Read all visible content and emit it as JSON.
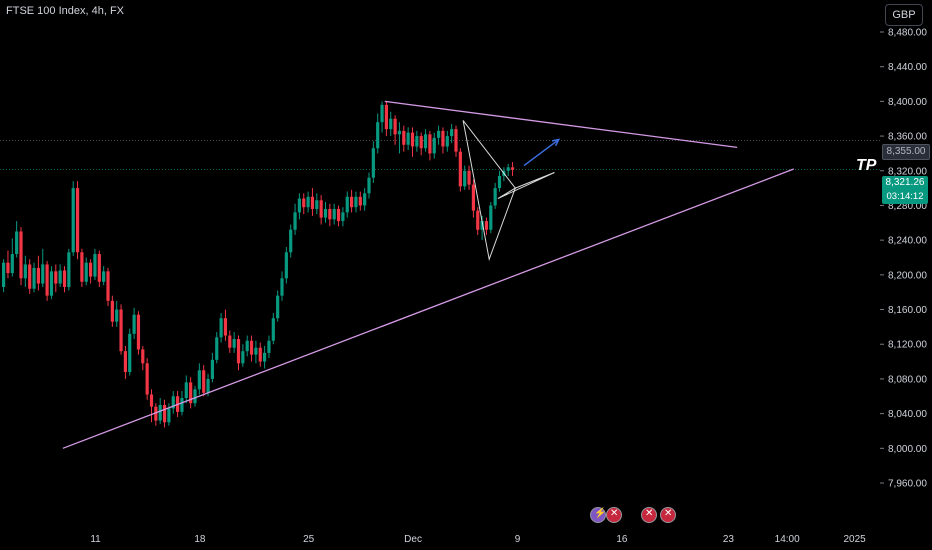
{
  "header": {
    "title": "FTSE 100 Index, 4h, FX"
  },
  "currency": "GBP",
  "annotation": {
    "tp": "TP"
  },
  "price_tags": {
    "target": "8,355.00",
    "last": "8,321.26",
    "countdown": "03:14:12"
  },
  "events": [
    "flash-icon",
    "uk-flag-icon",
    "uk-flag-icon",
    "uk-flag-icon"
  ],
  "colors": {
    "up": "#089981",
    "down": "#f23645",
    "trendline": "#d59ae6",
    "arrow": "#3b6fe0",
    "background": "#000000"
  },
  "chart_data": {
    "type": "candlestick",
    "y_ticks": [
      7960,
      8000,
      8040,
      8080,
      8120,
      8160,
      8200,
      8240,
      8280,
      8320,
      8360,
      8400,
      8440,
      8480
    ],
    "y_tick_labels": [
      "7,960.00",
      "8,000.00",
      "8,040.00",
      "8,080.00",
      "8,120.00",
      "8,160.00",
      "8,200.00",
      "8,240.00",
      "8,280.00",
      "8,320.00",
      "8,360.00",
      "8,400.00",
      "8,440.00",
      "8,480.00"
    ],
    "x_tick_labels": [
      {
        "label": "11",
        "bar": 21.5
      },
      {
        "label": "18",
        "bar": 45.5
      },
      {
        "label": "25",
        "bar": 70.5
      },
      {
        "label": "Dec",
        "bar": 94.5
      },
      {
        "label": "9",
        "bar": 118.5
      },
      {
        "label": "16",
        "bar": 142.5
      },
      {
        "label": "23",
        "bar": 167
      },
      {
        "label": "14:00",
        "bar": 180.5
      },
      {
        "label": "2025",
        "bar": 196
      }
    ],
    "reference_lines": [
      {
        "price": 8355.0,
        "style": "dotted"
      },
      {
        "price": 8321.26,
        "style": "dotted"
      }
    ],
    "candles": [
      [
        8186,
        8214,
        8180,
        8218
      ],
      [
        8214,
        8202,
        8196,
        8228
      ],
      [
        8202,
        8224,
        8198,
        8242
      ],
      [
        8224,
        8250,
        8220,
        8262
      ],
      [
        8250,
        8196,
        8188,
        8255
      ],
      [
        8196,
        8212,
        8186,
        8222
      ],
      [
        8212,
        8184,
        8178,
        8218
      ],
      [
        8184,
        8208,
        8180,
        8214
      ],
      [
        8208,
        8190,
        8182,
        8222
      ],
      [
        8190,
        8212,
        8186,
        8230
      ],
      [
        8212,
        8176,
        8170,
        8216
      ],
      [
        8176,
        8204,
        8172,
        8210
      ],
      [
        8204,
        8190,
        8180,
        8212
      ],
      [
        8190,
        8205,
        8186,
        8212
      ],
      [
        8205,
        8186,
        8180,
        8210
      ],
      [
        8186,
        8226,
        8182,
        8230
      ],
      [
        8226,
        8300,
        8222,
        8308
      ],
      [
        8300,
        8226,
        8218,
        8308
      ],
      [
        8226,
        8192,
        8186,
        8230
      ],
      [
        8192,
        8214,
        8188,
        8220
      ],
      [
        8214,
        8198,
        8190,
        8218
      ],
      [
        8198,
        8224,
        8194,
        8230
      ],
      [
        8224,
        8192,
        8186,
        8228
      ],
      [
        8192,
        8204,
        8188,
        8210
      ],
      [
        8204,
        8170,
        8164,
        8208
      ],
      [
        8170,
        8146,
        8140,
        8176
      ],
      [
        8146,
        8160,
        8140,
        8170
      ],
      [
        8160,
        8112,
        8108,
        8166
      ],
      [
        8112,
        8088,
        8080,
        8118
      ],
      [
        8088,
        8132,
        8084,
        8138
      ],
      [
        8132,
        8154,
        8126,
        8162
      ],
      [
        8154,
        8114,
        8108,
        8158
      ],
      [
        8114,
        8098,
        8090,
        8118
      ],
      [
        8098,
        8062,
        8056,
        8104
      ],
      [
        8062,
        8048,
        8030,
        8068
      ],
      [
        8048,
        8032,
        8026,
        8052
      ],
      [
        8032,
        8050,
        8028,
        8058
      ],
      [
        8050,
        8030,
        8024,
        8056
      ],
      [
        8030,
        8046,
        8026,
        8052
      ],
      [
        8046,
        8060,
        8040,
        8066
      ],
      [
        8060,
        8042,
        8036,
        8066
      ],
      [
        8042,
        8058,
        8038,
        8066
      ],
      [
        8058,
        8076,
        8052,
        8084
      ],
      [
        8076,
        8052,
        8046,
        8082
      ],
      [
        8052,
        8068,
        8048,
        8072
      ],
      [
        8068,
        8090,
        8062,
        8098
      ],
      [
        8090,
        8064,
        8060,
        8096
      ],
      [
        8064,
        8080,
        8060,
        8086
      ],
      [
        8080,
        8102,
        8076,
        8110
      ],
      [
        8102,
        8128,
        8098,
        8134
      ],
      [
        8128,
        8150,
        8122,
        8156
      ],
      [
        8150,
        8130,
        8124,
        8160
      ],
      [
        8130,
        8116,
        8110,
        8136
      ],
      [
        8116,
        8126,
        8110,
        8134
      ],
      [
        8126,
        8098,
        8090,
        8130
      ],
      [
        8098,
        8112,
        8094,
        8120
      ],
      [
        8112,
        8124,
        8106,
        8130
      ],
      [
        8124,
        8108,
        8100,
        8130
      ],
      [
        8108,
        8116,
        8098,
        8124
      ],
      [
        8116,
        8100,
        8094,
        8122
      ],
      [
        8100,
        8110,
        8092,
        8118
      ],
      [
        8110,
        8124,
        8104,
        8130
      ],
      [
        8124,
        8150,
        8120,
        8156
      ],
      [
        8150,
        8176,
        8146,
        8182
      ],
      [
        8176,
        8196,
        8170,
        8204
      ],
      [
        8196,
        8226,
        8190,
        8232
      ],
      [
        8226,
        8252,
        8220,
        8258
      ],
      [
        8252,
        8272,
        8246,
        8282
      ],
      [
        8272,
        8288,
        8264,
        8294
      ],
      [
        8288,
        8278,
        8270,
        8294
      ],
      [
        8278,
        8290,
        8272,
        8296
      ],
      [
        8290,
        8276,
        8268,
        8300
      ],
      [
        8276,
        8286,
        8270,
        8294
      ],
      [
        8286,
        8266,
        8258,
        8292
      ],
      [
        8266,
        8276,
        8260,
        8284
      ],
      [
        8276,
        8264,
        8256,
        8282
      ],
      [
        8264,
        8276,
        8258,
        8282
      ],
      [
        8276,
        8262,
        8256,
        8280
      ],
      [
        8262,
        8272,
        8256,
        8278
      ],
      [
        8272,
        8290,
        8266,
        8296
      ],
      [
        8290,
        8278,
        8272,
        8298
      ],
      [
        8278,
        8290,
        8272,
        8296
      ],
      [
        8290,
        8280,
        8274,
        8296
      ],
      [
        8280,
        8294,
        8274,
        8300
      ],
      [
        8294,
        8312,
        8288,
        8318
      ],
      [
        8312,
        8346,
        8306,
        8354
      ],
      [
        8346,
        8376,
        8340,
        8386
      ],
      [
        8376,
        8396,
        8364,
        8400
      ],
      [
        8396,
        8368,
        8360,
        8400
      ],
      [
        8368,
        8380,
        8360,
        8388
      ],
      [
        8380,
        8362,
        8350,
        8384
      ],
      [
        8362,
        8366,
        8340,
        8376
      ],
      [
        8366,
        8350,
        8342,
        8372
      ],
      [
        8350,
        8364,
        8344,
        8370
      ],
      [
        8364,
        8348,
        8336,
        8370
      ],
      [
        8348,
        8360,
        8342,
        8366
      ],
      [
        8360,
        8346,
        8338,
        8364
      ],
      [
        8346,
        8362,
        8342,
        8368
      ],
      [
        8362,
        8340,
        8332,
        8366
      ],
      [
        8340,
        8358,
        8334,
        8364
      ],
      [
        8358,
        8366,
        8350,
        8372
      ],
      [
        8366,
        8348,
        8340,
        8370
      ],
      [
        8348,
        8360,
        8342,
        8366
      ],
      [
        8360,
        8368,
        8352,
        8374
      ],
      [
        8368,
        8342,
        8336,
        8372
      ],
      [
        8342,
        8302,
        8296,
        8346
      ],
      [
        8302,
        8320,
        8298,
        8326
      ],
      [
        8320,
        8304,
        8298,
        8326
      ],
      [
        8304,
        8274,
        8266,
        8310
      ],
      [
        8274,
        8252,
        8246,
        8278
      ],
      [
        8252,
        8262,
        8240,
        8268
      ],
      [
        8262,
        8252,
        8246,
        8266
      ],
      [
        8252,
        8280,
        8248,
        8284
      ],
      [
        8280,
        8300,
        8276,
        8306
      ],
      [
        8300,
        8314,
        8296,
        8320
      ],
      [
        8314,
        8320,
        8308,
        8324
      ],
      [
        8320,
        8324,
        8314,
        8328
      ],
      [
        8324,
        8321.26,
        8314,
        8330
      ]
    ],
    "drawings": [
      {
        "type": "trendline",
        "from": [
          14,
          8000
        ],
        "to": [
          182,
          8322
        ]
      },
      {
        "type": "trendline",
        "from": [
          88,
          8400
        ],
        "to": [
          169,
          8347
        ]
      },
      {
        "type": "triangle",
        "points": [
          [
            106,
            8378
          ],
          [
            112,
            8218
          ],
          [
            118,
            8300
          ]
        ]
      },
      {
        "type": "triangle",
        "points": [
          [
            118,
            8300
          ],
          [
            127,
            8318
          ],
          [
            114,
            8288
          ]
        ]
      },
      {
        "type": "arrow",
        "from": [
          120,
          8326
        ],
        "to": [
          128,
          8356
        ]
      }
    ]
  }
}
